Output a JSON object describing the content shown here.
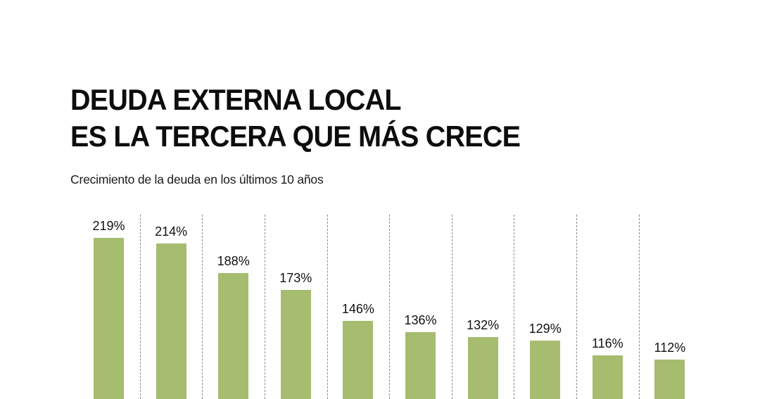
{
  "header": {
    "title_line1": "DEUDA EXTERNA LOCAL",
    "title_line2": "ES LA TERCERA QUE MÁS CRECE",
    "subtitle": "Crecimiento de la deuda en los últimos 10 años"
  },
  "colors": {
    "bar": "#A6BC6F",
    "divider": "#8A8A8A",
    "text": "#111111"
  },
  "bars": [
    {
      "label": "219%",
      "value": 219
    },
    {
      "label": "214%",
      "value": 214
    },
    {
      "label": "188%",
      "value": 188
    },
    {
      "label": "173%",
      "value": 173
    },
    {
      "label": "146%",
      "value": 146
    },
    {
      "label": "136%",
      "value": 136
    },
    {
      "label": "132%",
      "value": 132
    },
    {
      "label": "129%",
      "value": 129
    },
    {
      "label": "116%",
      "value": 116
    },
    {
      "label": "112%",
      "value": 112
    }
  ],
  "chart_data": {
    "type": "bar",
    "title": "DEUDA EXTERNA LOCAL ES LA TERCERA QUE MÁS CRECE",
    "subtitle": "Crecimiento de la deuda en los últimos 10 años",
    "categories": [
      "",
      "",
      "",
      "",
      "",
      "",
      "",
      "",
      "",
      ""
    ],
    "values": [
      219,
      214,
      188,
      173,
      146,
      136,
      132,
      129,
      116,
      112
    ],
    "data_labels": [
      "219%",
      "214%",
      "188%",
      "173%",
      "146%",
      "136%",
      "132%",
      "129%",
      "116%",
      "112%"
    ],
    "unit": "%",
    "xlabel": "",
    "ylabel": "",
    "grid": false,
    "legend": null,
    "separators": "vertical dashed lines between bars"
  }
}
